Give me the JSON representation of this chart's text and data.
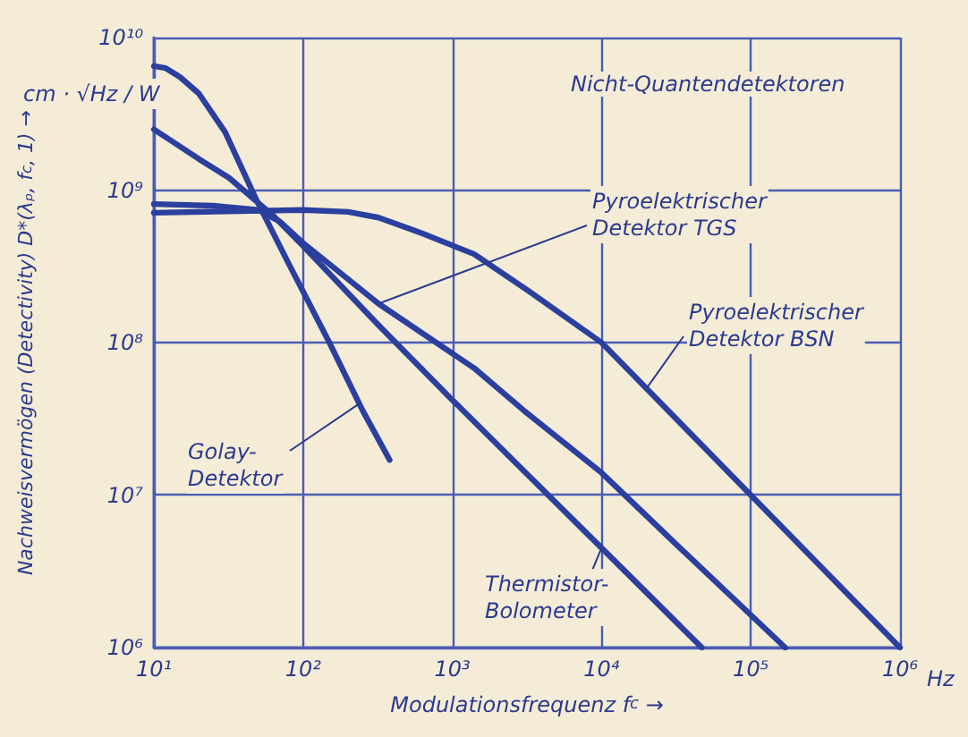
{
  "chart_data": {
    "type": "line",
    "title": "Nicht-Quantendetektoren",
    "xlabel": "Modulationsfrequenz f$_{c}$ →",
    "ylabel": "Nachweisvermögen (Detectivity) D*(λₚ, f$_{c}$, 1) →",
    "log": "xy",
    "grid": true,
    "marker": "none",
    "line_style": "solid",
    "xlim": [
      10,
      1000000
    ],
    "ylim": [
      1000000,
      10000000000
    ],
    "xticks": [
      {
        "value": 10,
        "label": "10¹"
      },
      {
        "value": 100,
        "label": "10²"
      },
      {
        "value": 1000,
        "label": "10³"
      },
      {
        "value": 10000,
        "label": "10⁴"
      },
      {
        "value": 100000,
        "label": "10⁵"
      },
      {
        "value": 1000000,
        "label": "10⁶"
      }
    ],
    "yticks": [
      {
        "value": 1000000,
        "label": "10⁶"
      },
      {
        "value": 10000000,
        "label": "10⁷"
      },
      {
        "value": 100000000,
        "label": "10⁸"
      },
      {
        "value": 1000000000,
        "label": "10⁹"
      },
      {
        "value": 10000000000,
        "label": "10¹⁰"
      }
    ],
    "series": [
      {
        "color": "#2b3f9e",
        "x": [
          10,
          12,
          15,
          20,
          30,
          49,
          80,
          150,
          250,
          380
        ],
        "values": [
          6500000000,
          6300000000,
          5500000000,
          4300000000,
          2400000000,
          850000000,
          330000000,
          100000000,
          36000000,
          17000000
        ]
      },
      {
        "color": "#2b3f9e",
        "x": [
          10,
          20,
          32,
          63,
          100,
          320,
          1000,
          10000,
          47000
        ],
        "values": [
          2500000000,
          1600000000,
          1200000000,
          680000000,
          430000000,
          130000000,
          42000000,
          4500000,
          1000000
        ]
      },
      {
        "color": "#2b3f9e",
        "x": [
          10,
          25,
          50,
          70,
          100,
          320,
          1400,
          3000,
          10000,
          32000,
          170000
        ],
        "values": [
          810000000,
          790000000,
          740000000,
          620000000,
          450000000,
          180000000,
          68000000,
          36000000,
          14000000,
          4700000,
          1000000
        ]
      },
      {
        "color": "#2b3f9e",
        "x": [
          10,
          100,
          200,
          320,
          630,
          1400,
          3200,
          10000,
          100000,
          1000000
        ],
        "values": [
          710000000,
          740000000,
          720000000,
          660000000,
          520000000,
          380000000,
          220000000,
          100000000,
          10000000,
          1000000
        ]
      }
    ],
    "annotations": [
      "cm · √Hz / W",
      {
        "text": "Pyroelektrischer\nDetektor TGS",
        "x": 320,
        "y": 180000000
      },
      {
        "text": "Pyroelektrischer\nDetektor BSN",
        "x": 20000,
        "y": 50000000
      },
      {
        "text": "Golay-\nDetektor",
        "x": 240,
        "y": 40000000
      },
      {
        "text": "Thermistor-\nBolometer",
        "x": 10000,
        "y": 4500000
      },
      "Hz"
    ]
  }
}
